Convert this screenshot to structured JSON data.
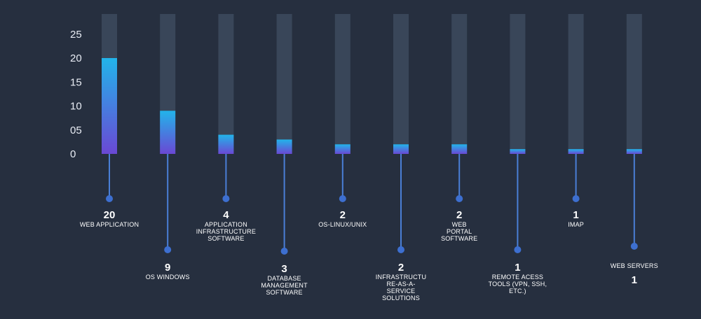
{
  "chart_data": {
    "type": "bar",
    "yticks": [
      "25",
      "20",
      "15",
      "10",
      "05",
      "0"
    ],
    "ylim": [
      0,
      29
    ],
    "grid": false,
    "categories": [
      "WEB APPLICATION",
      "OS WINDOWS",
      "APPLICATION INFRASTRUCTURE SOFTWARE",
      "DATABASE MANAGEMENT SOFTWARE",
      "OS-LINUX/UNIX",
      "INFRASTRUCTURE-AS-A-SERVICE SOLUTIONS",
      "WEB PORTAL SOFTWARE",
      "REMOTE ACESS TOOLS (VPN, SSH, ETC.)",
      "IMAP",
      "WEB SERVERS"
    ],
    "label_lines": [
      [
        "WEB APPLICATION"
      ],
      [
        "OS WINDOWS"
      ],
      [
        "APPLICATION",
        "INFRASTRUCTURE",
        "SOFTWARE"
      ],
      [
        "DATABASE",
        "MANAGEMENT",
        "SOFTWARE"
      ],
      [
        "OS-LINUX/UNIX"
      ],
      [
        "INFRASTRUCTU",
        "RE-AS-A-",
        "SERVICE",
        "SOLUTIONS"
      ],
      [
        "WEB",
        "PORTAL",
        "SOFTWARE"
      ],
      [
        "REMOTE ACESS",
        "TOOLS (VPN, SSH,",
        "ETC.)"
      ],
      [
        "IMAP"
      ],
      [
        "WEB SERVERS"
      ]
    ],
    "values": [
      20,
      9,
      4,
      3,
      2,
      2,
      2,
      1,
      1,
      1
    ],
    "value_labels": [
      "20",
      "9",
      "4",
      "3",
      "2",
      "2",
      "2",
      "1",
      "1",
      "1"
    ],
    "colors": {
      "background": "#262f3f",
      "track": "#394659",
      "bar_top": "#22b4ea",
      "bar_bottom": "#6a48d4",
      "stem": "#4a7fd6",
      "dot": "#3d6fd0"
    }
  }
}
